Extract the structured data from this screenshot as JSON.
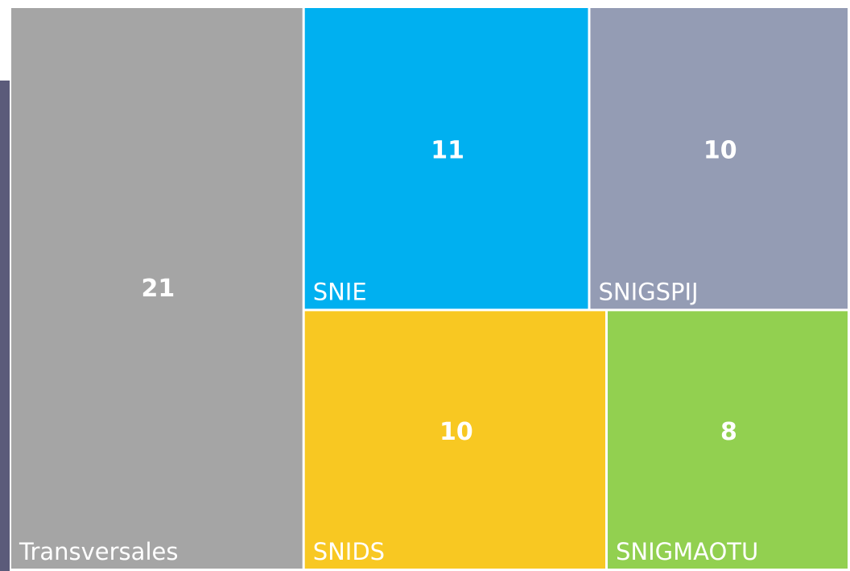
{
  "chart_data": {
    "type": "treemap",
    "categories": [
      "Transversales",
      "SNIE",
      "SNIGSPIJ",
      "SNIDS",
      "SNIGMAOTU"
    ],
    "values": [
      21,
      11,
      10,
      10,
      8
    ],
    "colors": [
      "#a5a5a5",
      "#00b0f0",
      "#949cb4",
      "#f8c822",
      "#92d050"
    ]
  }
}
